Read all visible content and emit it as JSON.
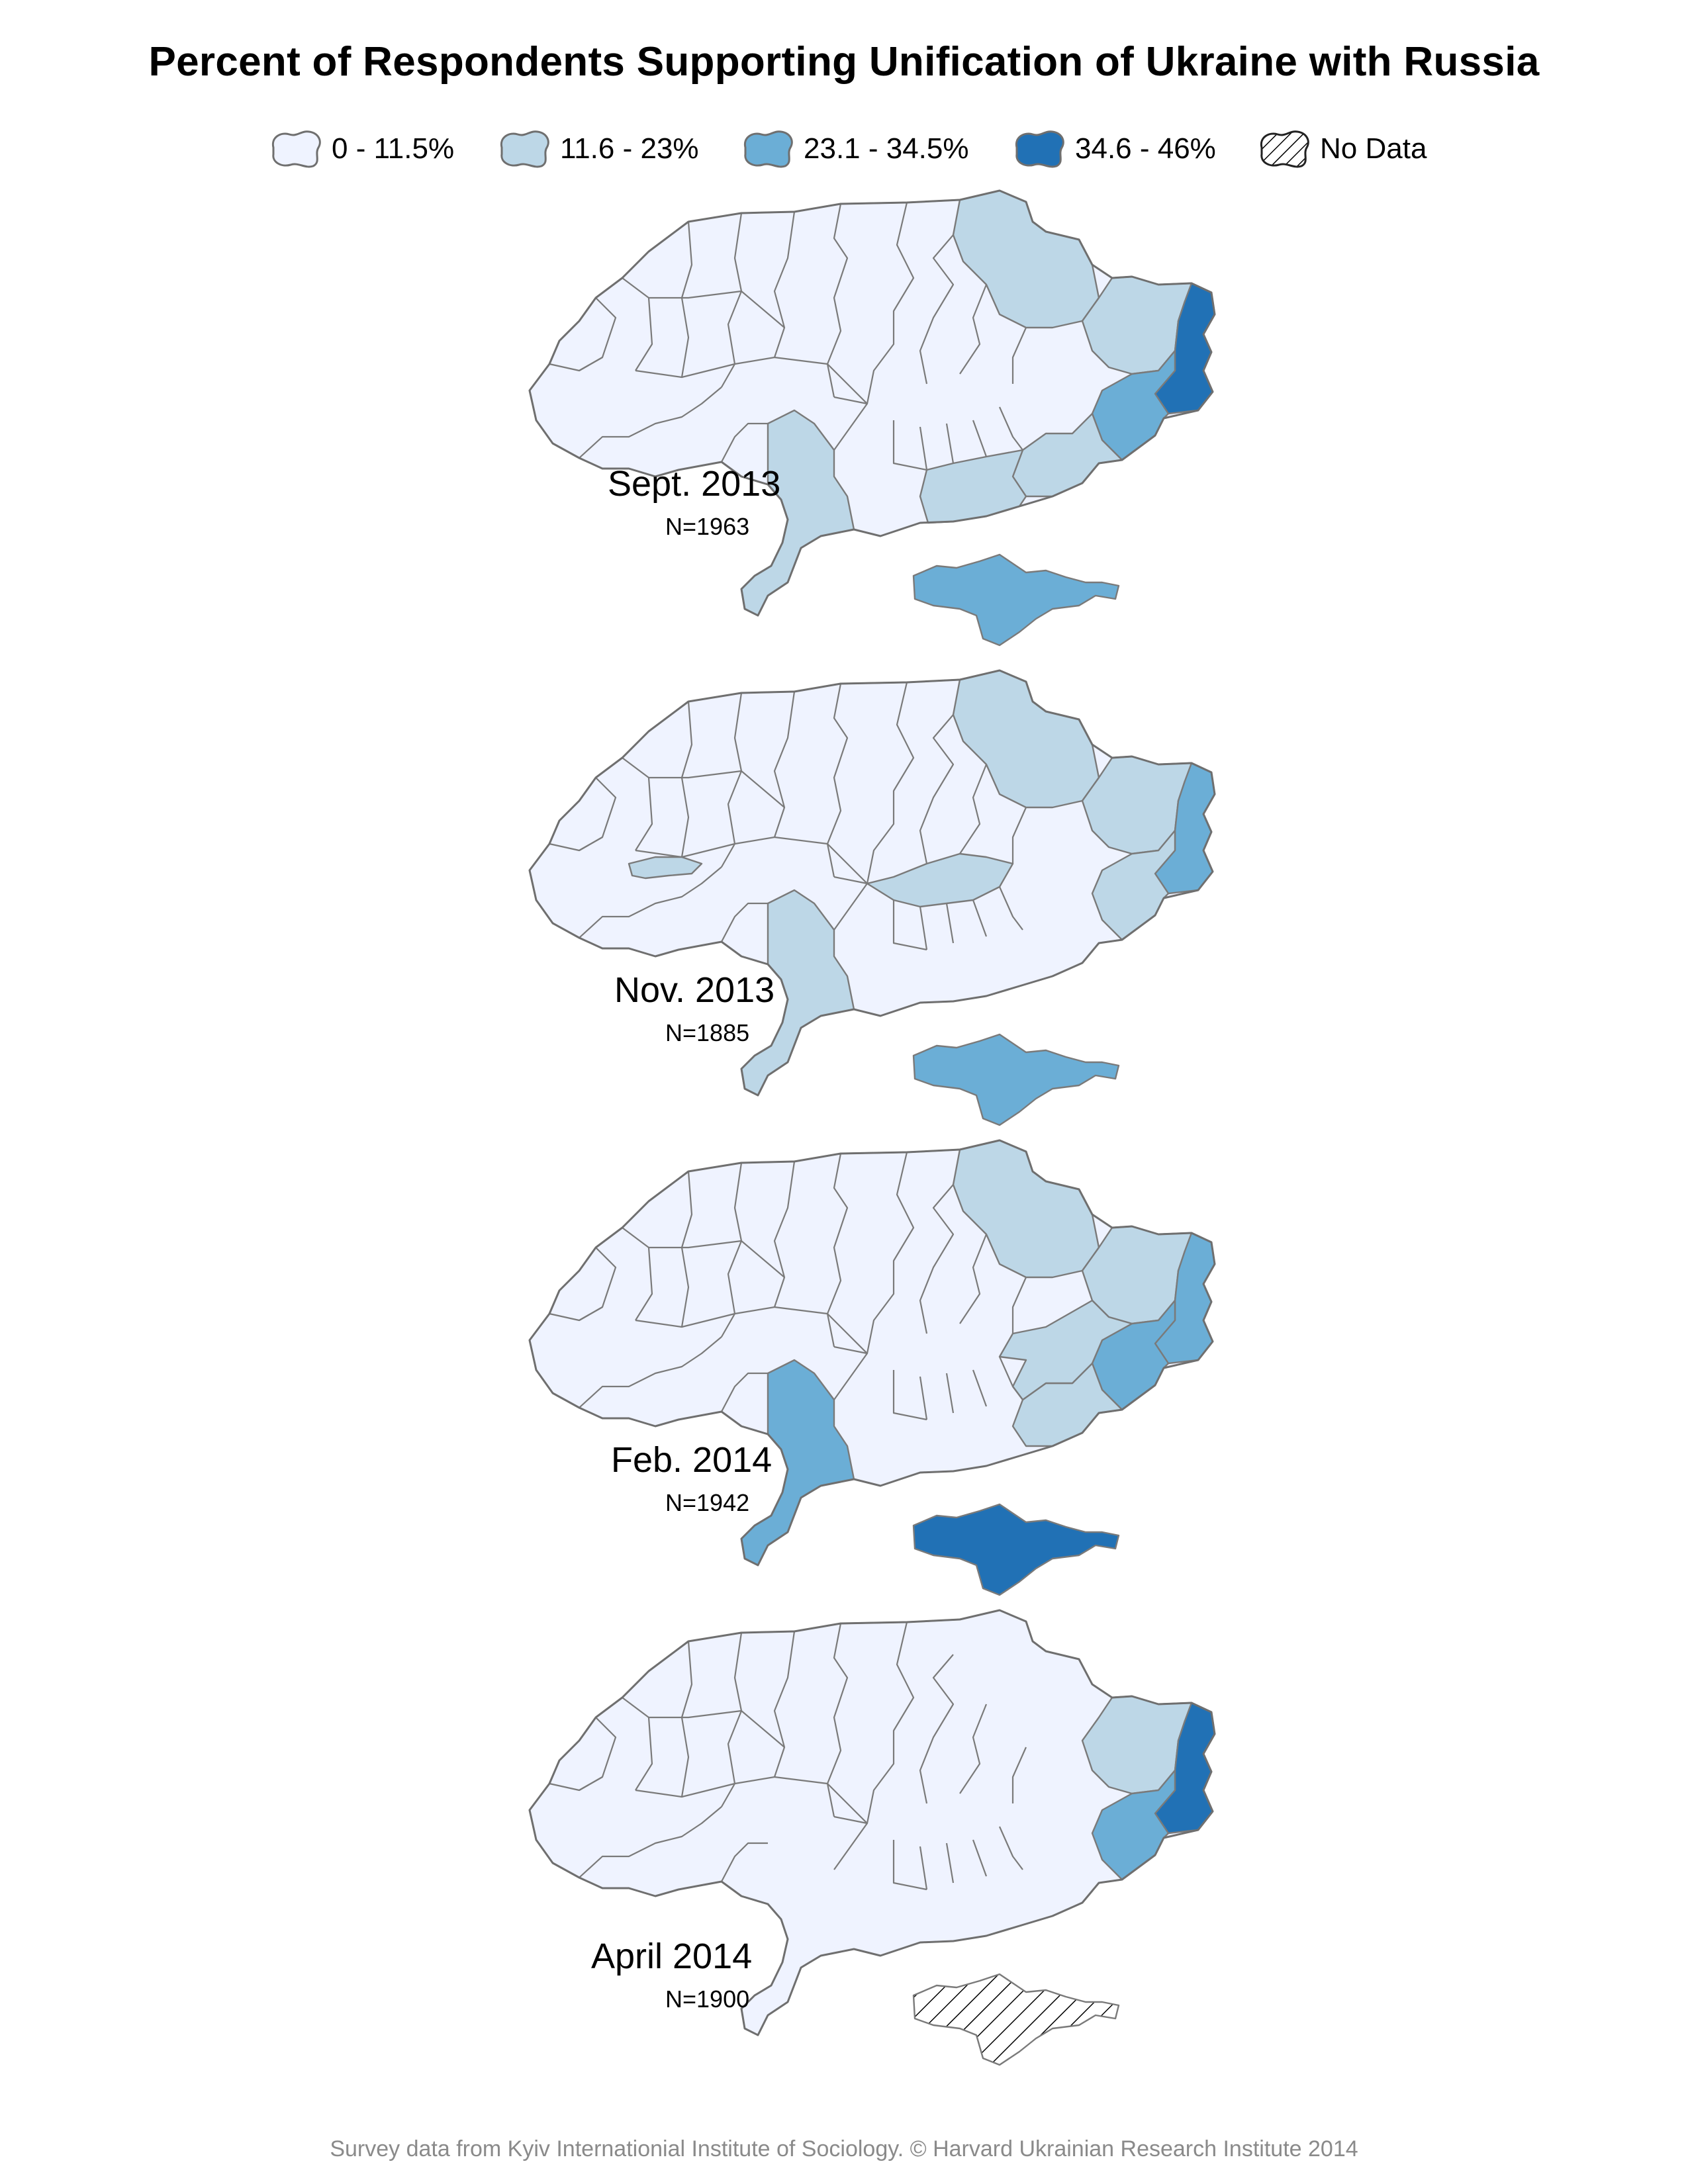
{
  "title": "Percent of Respondents Supporting Unification of Ukraine with Russia",
  "legend": [
    {
      "label": "0 - 11.5%",
      "color": "#eff3ff"
    },
    {
      "label": "11.6 - 23%",
      "color": "#bdd7e7"
    },
    {
      "label": "23.1 - 34.5%",
      "color": "#6baed6"
    },
    {
      "label": "34.6 - 46%",
      "color": "#2171b5"
    },
    {
      "label": "No Data",
      "color": "hatched"
    }
  ],
  "panels": [
    {
      "date": "Sept. 2013",
      "n": "N=1963",
      "regions": {
        "chernihiv": 1,
        "kharkiv": 1,
        "luhansk": 3,
        "donetsk": 2,
        "zaporizhzhia": 1,
        "kherson": 1,
        "crimea": 2,
        "odesa": 1
      }
    },
    {
      "date": "Nov. 2013",
      "n": "N=1885",
      "regions": {
        "chernihiv": 1,
        "kharkiv": 1,
        "luhansk": 2,
        "donetsk": 1,
        "kirovohrad": 1,
        "odesa": 1,
        "crimea": 2,
        "chernivtsi": 1
      }
    },
    {
      "date": "Feb. 2014",
      "n": "N=1942",
      "regions": {
        "chernihiv": 1,
        "kharkiv": 1,
        "luhansk": 2,
        "donetsk": 2,
        "dnipro": 1,
        "zaporizhzhia": 1,
        "odesa": 2,
        "crimea": 3
      }
    },
    {
      "date": "April 2014",
      "n": "N=1900",
      "regions": {
        "kharkiv": 1,
        "luhansk": 3,
        "donetsk": 2,
        "crimea": "nodata"
      }
    }
  ],
  "footer": "Survey data from Kyiv Internationial Institute of Sociology. © Harvard Ukrainian Research Institute 2014"
}
